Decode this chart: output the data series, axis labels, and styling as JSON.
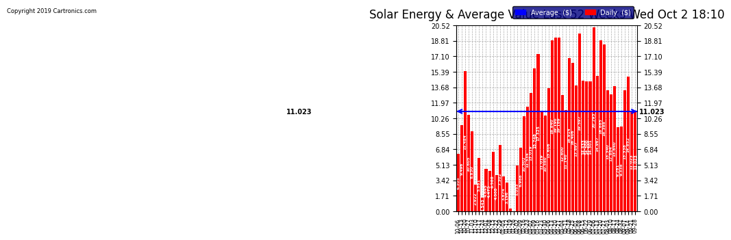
{
  "title": "Solar Energy & Average Value Last 52 Weeks Wed Oct 2 18:10",
  "copyright": "Copyright 2019 Cartronics.com",
  "average_line": 11.023,
  "average_label": "11.023",
  "ylim": [
    0,
    20.52
  ],
  "yticks": [
    0.0,
    1.71,
    3.42,
    5.13,
    6.84,
    8.55,
    10.26,
    11.97,
    13.68,
    15.39,
    17.1,
    18.81,
    20.52
  ],
  "bar_color": "#ff0000",
  "avg_line_color": "#0000ff",
  "background_color": "#ffffff",
  "grid_color": "#aaaaaa",
  "categories": [
    "10-06",
    "10-13",
    "10-20",
    "10-27",
    "11-03",
    "11-10",
    "11-17",
    "11-24",
    "12-01",
    "12-08",
    "12-15",
    "12-22",
    "12-29",
    "01-05",
    "01-12",
    "01-19",
    "01-26",
    "02-02",
    "02-09",
    "02-16",
    "02-23",
    "03-02",
    "03-09",
    "03-16",
    "03-23",
    "03-30",
    "04-06",
    "04-13",
    "04-20",
    "04-27",
    "05-04",
    "05-11",
    "05-18",
    "05-25",
    "06-01",
    "06-08",
    "06-15",
    "06-22",
    "06-29",
    "07-06",
    "07-13",
    "07-20",
    "07-27",
    "08-03",
    "08-10",
    "08-17",
    "08-24",
    "08-31",
    "09-07",
    "09-14",
    "09-21",
    "09-28"
  ],
  "values": [
    6.305,
    9.496,
    15.484,
    10.605,
    8.83,
    2.922,
    5.881,
    1.543,
    4.645,
    4.475,
    6.588,
    4.008,
    7.302,
    3.874,
    3.196,
    0.332,
    0.0,
    5.053,
    6.988,
    10.502,
    11.534,
    13.019,
    15.748,
    17.325,
    11.019,
    10.58,
    13.606,
    18.84,
    19.19,
    19.189,
    12.8,
    11.14,
    16.914,
    16.406,
    13.897,
    19.597,
    14.433,
    14.3,
    14.301,
    20.293,
    14.967,
    18.885,
    18.388,
    13.34,
    12.884,
    13.84,
    9.281,
    9.338,
    13.338,
    14.852,
    11.023,
    11.023
  ],
  "legend_avg_color": "#0000ff",
  "legend_daily_color": "#ff0000",
  "legend_avg_text": "Average  ($)",
  "legend_daily_text": "Daily  ($)"
}
